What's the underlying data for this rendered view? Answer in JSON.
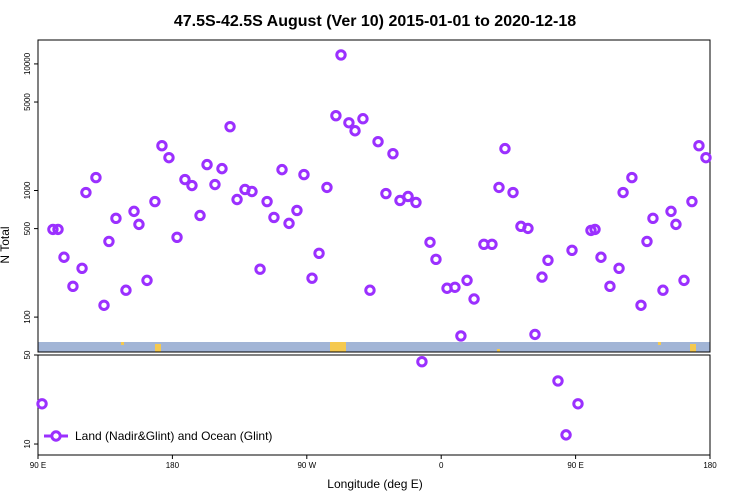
{
  "chart_data": [
    {
      "type": "scatter",
      "title": "47.5S-42.5S August (Ver 10)   2015-01-01 to 2020-12-18",
      "y_label": "N Total",
      "log_y": true,
      "xlim": [
        90,
        540
      ],
      "ylim": [
        53,
        15450
      ],
      "yticks": [
        100,
        500,
        1000,
        5000,
        10000
      ],
      "x": [
        100,
        103.4,
        107.4,
        113.4,
        119.5,
        122.1,
        128.8,
        134.2,
        137.5,
        142.2,
        148.9,
        154.3,
        157.6,
        163.0,
        168.3,
        173.0,
        177.7,
        183.1,
        188.4,
        193.1,
        198.5,
        203.2,
        208.5,
        213.2,
        218.6,
        223.3,
        228.6,
        233.3,
        238.7,
        243.4,
        248.0,
        253.4,
        258.1,
        263.4,
        268.1,
        273.5,
        278.2,
        283.5,
        289.5,
        292.9,
        298.2,
        302.3,
        307.6,
        312.3,
        317.7,
        323.0,
        327.7,
        332.4,
        337.8,
        343.1,
        352.5,
        356.5,
        363.9,
        369.2,
        373.2,
        377.3,
        382.0,
        388.6,
        394.0,
        398.7,
        402.7,
        408.1,
        413.4,
        418.1,
        422.8,
        427.5,
        431.5,
        447.6,
        460.3,
        463.0,
        467.0,
        473.0,
        479.1,
        481.8,
        487.7,
        493.8,
        497.8,
        501.8,
        508.5,
        513.9,
        517.2,
        522.6,
        527.9,
        532.6,
        537.3
      ],
      "series": [
        {
          "color": "#9b30ff",
          "values": [
            493,
            493,
            297,
            175,
            243,
            964,
            1265,
            124,
            396,
            603,
            163,
            684,
            540,
            195,
            818,
            2259,
            1818,
            427,
            1221,
            1095,
            635,
            1602,
            1115,
            1489,
            3191,
            849,
            1019,
            982,
            239,
            818,
            613,
            1462,
            550,
            696,
            1336,
            203,
            319,
            1058,
            3900,
            11780,
            3428,
            2965,
            3690,
            163,
            2432,
            946,
            1954,
            834,
            897,
            805,
            390,
            286,
            169,
            172,
            71,
            195,
            139,
            376,
            376,
            1058,
            2143,
            964,
            521,
            502,
            73,
            207,
            281,
            337,
            484,
            493,
            297,
            175,
            243,
            964,
            1265,
            124,
            396,
            603,
            163,
            684,
            540,
            195,
            818,
            2259,
            1818
          ]
        }
      ]
    },
    {
      "type": "scatter",
      "x_label": "Longitude (deg E)",
      "log_y": true,
      "xlim": [
        90,
        540
      ],
      "ylim": [
        8.2,
        50
      ],
      "yticks": [
        10,
        50
      ],
      "xticks": [
        {
          "value": 90,
          "label": "90 E"
        },
        180,
        {
          "value": 270,
          "label": "90 W"
        },
        {
          "value": 360,
          "label": "0"
        },
        {
          "value": 450,
          "label": "90 E"
        },
        {
          "value": 540,
          "label": "180"
        }
      ],
      "legend": "lower left",
      "x": [
        92.7,
        347.1,
        438.2,
        443.6,
        451.6
      ],
      "series": [
        {
          "name": "Land (Nadir&Glint) and Ocean (Glint)",
          "color": "#9b30ff",
          "values": [
            20.7,
            44.3,
            31.3,
            11.8,
            20.7
          ]
        }
      ]
    }
  ]
}
